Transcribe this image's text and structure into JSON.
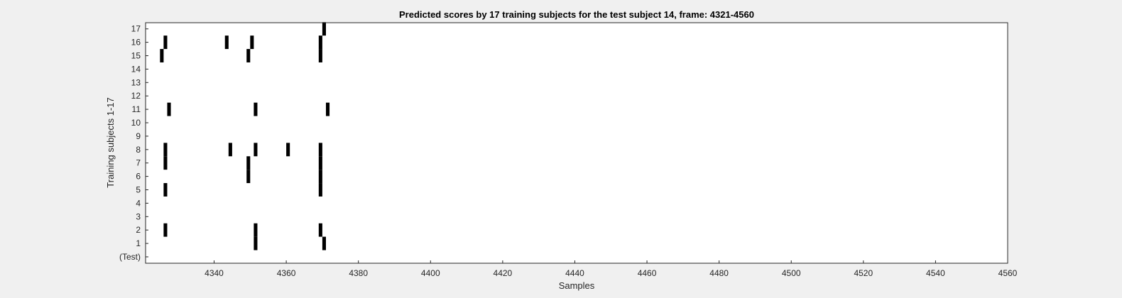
{
  "chart_data": {
    "type": "heatmap",
    "title": "Predicted scores by 17 training subjects for the test subject 14, frame: 4321-4560",
    "xlabel": "Samples",
    "ylabel": "Training subjects 1-17",
    "xlim": [
      4321,
      4560
    ],
    "x_ticks": [
      4340,
      4360,
      4380,
      4400,
      4420,
      4440,
      4460,
      4480,
      4500,
      4520,
      4540,
      4560
    ],
    "y_tick_labels": [
      "(Test)",
      "1",
      "2",
      "3",
      "4",
      "5",
      "6",
      "7",
      "8",
      "9",
      "10",
      "11",
      "12",
      "13",
      "14",
      "15",
      "16",
      "17"
    ],
    "grid": false,
    "colors": {
      "mark": "#000000",
      "background": "#ffffff",
      "figure_background": "#f0f0f0",
      "axes": "#262626"
    },
    "marks": [
      {
        "row": "17",
        "start": 4370,
        "end": 4371
      },
      {
        "row": "16",
        "start": 4326,
        "end": 4327
      },
      {
        "row": "16",
        "start": 4343,
        "end": 4344
      },
      {
        "row": "16",
        "start": 4350,
        "end": 4351
      },
      {
        "row": "16",
        "start": 4369,
        "end": 4370
      },
      {
        "row": "15",
        "start": 4325,
        "end": 4326
      },
      {
        "row": "15",
        "start": 4349,
        "end": 4350
      },
      {
        "row": "15",
        "start": 4369,
        "end": 4370
      },
      {
        "row": "11",
        "start": 4327,
        "end": 4328
      },
      {
        "row": "11",
        "start": 4351,
        "end": 4352
      },
      {
        "row": "11",
        "start": 4371,
        "end": 4372
      },
      {
        "row": "8",
        "start": 4326,
        "end": 4327
      },
      {
        "row": "8",
        "start": 4344,
        "end": 4345
      },
      {
        "row": "8",
        "start": 4351,
        "end": 4352
      },
      {
        "row": "8",
        "start": 4360,
        "end": 4361
      },
      {
        "row": "8",
        "start": 4369,
        "end": 4370
      },
      {
        "row": "7",
        "start": 4326,
        "end": 4327
      },
      {
        "row": "7",
        "start": 4349,
        "end": 4350
      },
      {
        "row": "7",
        "start": 4369,
        "end": 4370
      },
      {
        "row": "6",
        "start": 4349,
        "end": 4350
      },
      {
        "row": "6",
        "start": 4369,
        "end": 4370
      },
      {
        "row": "5",
        "start": 4326,
        "end": 4327
      },
      {
        "row": "5",
        "start": 4369,
        "end": 4370
      },
      {
        "row": "2",
        "start": 4326,
        "end": 4327
      },
      {
        "row": "2",
        "start": 4351,
        "end": 4352
      },
      {
        "row": "2",
        "start": 4369,
        "end": 4370
      },
      {
        "row": "1",
        "start": 4351,
        "end": 4352
      },
      {
        "row": "1",
        "start": 4370,
        "end": 4371
      }
    ]
  }
}
